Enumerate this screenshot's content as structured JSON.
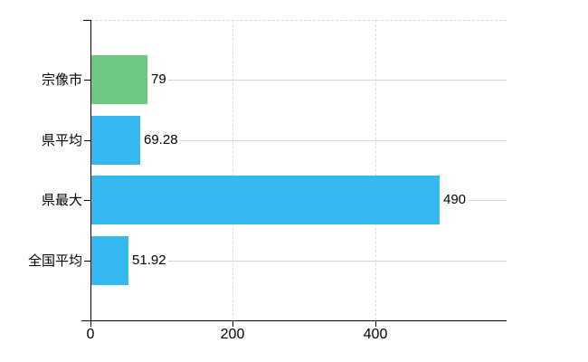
{
  "chart_data": {
    "type": "bar",
    "orientation": "horizontal",
    "title": "",
    "xlabel": "",
    "ylabel": "",
    "categories": [
      "宗像市",
      "県平均",
      "県最大",
      "全国平均"
    ],
    "values": [
      79,
      69.28,
      490,
      51.92
    ],
    "value_labels": [
      "79",
      "69.28",
      "490",
      "51.92"
    ],
    "bar_colors": [
      "#6dca80",
      "#36b9f0",
      "#36b9f0",
      "#36b9f0"
    ],
    "x_ticks": [
      0,
      200,
      400
    ],
    "x_tick_labels": [
      "0",
      "200",
      "400"
    ],
    "xlim": [
      0,
      585
    ],
    "legend": false,
    "grid": {
      "horizontal": "solid",
      "vertical": "dashed",
      "top_border": "dashed",
      "h_color": "#cfd8cf",
      "v_color": "#dcdcdc"
    },
    "colors": {
      "axis": "#000000",
      "text": "#000000",
      "background": "#ffffff",
      "bar_green": "#6dca80",
      "bar_blue": "#36b9f0"
    }
  }
}
